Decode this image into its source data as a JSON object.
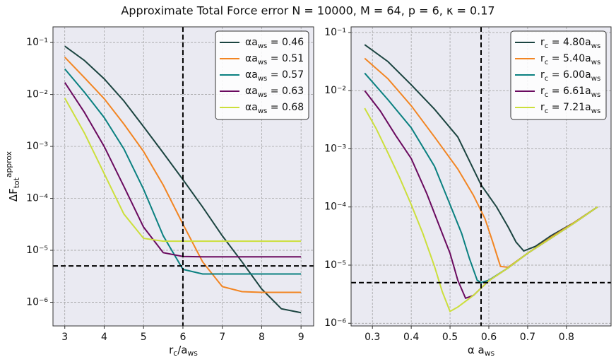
{
  "title": "Approximate Total Force error  N = 10000,   M = 64,   p = 6,   κ = 0.17",
  "chart_data": [
    {
      "type": "line",
      "log_y": true,
      "grid": true,
      "legend": "upper right",
      "xlabel": "r_{c}/a_{ws}",
      "ylabel": "ΔF_{tot}^{approx}",
      "x": [
        3,
        3.5,
        4,
        4.5,
        5,
        5.5,
        6,
        6.5,
        7,
        7.5,
        8,
        8.5,
        9
      ],
      "xlim": [
        2.7,
        9.32
      ],
      "xticks": [
        3,
        4,
        5,
        6,
        7,
        8,
        9
      ],
      "ylim": [
        3.5e-07,
        0.2
      ],
      "yticks": [
        {
          "value": 1e-06,
          "label": "10⁻⁶"
        },
        {
          "value": 1e-05,
          "label": "10⁻⁵"
        },
        {
          "value": 0.0001,
          "label": "10⁻⁴"
        },
        {
          "value": 0.001,
          "label": "10⁻³"
        },
        {
          "value": 0.01,
          "label": "10⁻²"
        },
        {
          "value": 0.1,
          "label": "10⁻¹"
        }
      ],
      "vline": 6,
      "hline": 5e-06,
      "series": [
        {
          "name": "αa_{ws} = 0.46",
          "color": "#1b4440",
          "values": [
            0.085,
            0.045,
            0.02,
            0.0075,
            0.0024,
            0.00075,
            0.00023,
            6.8e-05,
            1.9e-05,
            6e-06,
            1.8e-06,
            7.5e-07,
            6.3e-07
          ]
        },
        {
          "name": "αa_{ws} = 0.51",
          "color": "#f28522",
          "values": [
            0.052,
            0.021,
            0.0083,
            0.0027,
            0.0008,
            0.00018,
            3.2e-05,
            6e-06,
            2e-06,
            1.6e-06,
            1.55e-06,
            1.55e-06,
            1.55e-06
          ]
        },
        {
          "name": "αa_{ws} = 0.57",
          "color": "#0a8080",
          "values": [
            0.031,
            0.011,
            0.0036,
            0.0009,
            0.00015,
            1.9e-05,
            4.3e-06,
            3.5e-06,
            3.5e-06,
            3.5e-06,
            3.5e-06,
            3.5e-06,
            3.5e-06
          ]
        },
        {
          "name": "αa_{ws} = 0.63",
          "color": "#6a0a5f",
          "values": [
            0.017,
            0.0045,
            0.001,
            0.00017,
            2.8e-05,
            9e-06,
            7.6e-06,
            7.5e-06,
            7.5e-06,
            7.5e-06,
            7.5e-06,
            7.5e-06,
            7.5e-06
          ]
        },
        {
          "name": "αa_{ws} = 0.68",
          "color": "#ccdf3b",
          "values": [
            0.0085,
            0.0018,
            0.0003,
            5e-05,
            1.7e-05,
            1.5e-05,
            1.5e-05,
            1.5e-05,
            1.5e-05,
            1.5e-05,
            1.5e-05,
            1.5e-05,
            1.5e-05
          ]
        }
      ]
    },
    {
      "type": "line",
      "log_y": true,
      "grid": true,
      "legend": "upper right",
      "xlabel": "α a_{ws}",
      "xlim": [
        0.245,
        0.915
      ],
      "xticks": [
        0.3,
        0.4,
        0.5,
        0.6,
        0.7,
        0.8
      ],
      "ylim": [
        9e-07,
        0.125
      ],
      "yticks": [
        {
          "value": 1e-06,
          "label": "10⁻⁶"
        },
        {
          "value": 1e-05,
          "label": "10⁻⁵"
        },
        {
          "value": 0.0001,
          "label": "10⁻⁴"
        },
        {
          "value": 0.001,
          "label": "10⁻³"
        },
        {
          "value": 0.01,
          "label": "10⁻²"
        },
        {
          "value": 0.1,
          "label": "10⁻¹"
        }
      ],
      "vline": 0.58,
      "hline": 5e-06,
      "series": [
        {
          "name": "r_{c} = 4.80a_{ws}",
          "color": "#1b4440",
          "x": [
            0.28,
            0.34,
            0.4,
            0.46,
            0.52,
            0.58,
            0.62,
            0.65,
            0.67,
            0.69,
            0.72,
            0.76,
            0.82,
            0.88
          ],
          "values": [
            0.0617,
            0.0316,
            0.0126,
            0.0048,
            0.0016,
            0.00024,
            0.0001,
            4.5e-05,
            2.5e-05,
            1.75e-05,
            2.1e-05,
            3.2e-05,
            5.4e-05,
            0.0001
          ]
        },
        {
          "name": "r_{c} = 5.40a_{ws}",
          "color": "#f28522",
          "x": [
            0.28,
            0.34,
            0.4,
            0.46,
            0.52,
            0.56,
            0.59,
            0.61,
            0.63,
            0.65,
            0.7,
            0.76,
            0.82,
            0.88
          ],
          "values": [
            0.036,
            0.016,
            0.0055,
            0.0016,
            0.00045,
            0.00016,
            6.3e-05,
            2.5e-05,
            9.5e-06,
            9.2e-06,
            1.6e-05,
            3e-05,
            5.4e-05,
            0.0001
          ]
        },
        {
          "name": "r_{c} = 6.00a_{ws}",
          "color": "#0a8080",
          "x": [
            0.28,
            0.34,
            0.4,
            0.46,
            0.5,
            0.53,
            0.55,
            0.57,
            0.58,
            0.6,
            0.65,
            0.7,
            0.76,
            0.82,
            0.88
          ],
          "values": [
            0.02,
            0.007,
            0.0023,
            0.0005,
            0.00011,
            3.5e-05,
            1.3e-05,
            5.5e-06,
            5e-06,
            5.5e-06,
            9e-06,
            1.6e-05,
            2.9e-05,
            5.3e-05,
            0.0001
          ]
        },
        {
          "name": "r_{c} = 6.61a_{ws}",
          "color": "#6a0a5f",
          "x": [
            0.28,
            0.32,
            0.36,
            0.4,
            0.44,
            0.48,
            0.5,
            0.52,
            0.54,
            0.56,
            0.6,
            0.65,
            0.7,
            0.76,
            0.82,
            0.88
          ],
          "values": [
            0.01,
            0.0045,
            0.0017,
            0.00068,
            0.00017,
            3.5e-05,
            1.6e-05,
            5.5e-06,
            2.7e-06,
            3e-06,
            5.4e-06,
            9e-06,
            1.6e-05,
            2.9e-05,
            5.3e-05,
            0.0001
          ]
        },
        {
          "name": "r_{c} = 7.21a_{ws}",
          "color": "#ccdf3b",
          "x": [
            0.28,
            0.31,
            0.34,
            0.37,
            0.4,
            0.43,
            0.46,
            0.48,
            0.5,
            0.52,
            0.56,
            0.6,
            0.65,
            0.7,
            0.76,
            0.82,
            0.88
          ],
          "values": [
            0.005,
            0.0022,
            0.00085,
            0.00032,
            0.00011,
            3.5e-05,
            9.5e-06,
            3.5e-06,
            1.6e-06,
            1.9e-06,
            3e-06,
            5.4e-06,
            9e-06,
            1.6e-05,
            2.9e-05,
            5.3e-05,
            0.0001
          ]
        }
      ]
    }
  ]
}
